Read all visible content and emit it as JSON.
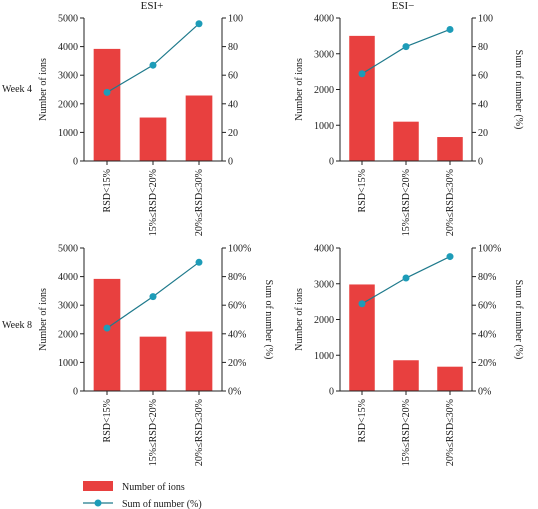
{
  "column_titles": [
    "ESI+",
    "ESI−"
  ],
  "row_labels": [
    "Week 4",
    "Week 8"
  ],
  "legend": {
    "bar_label": "Number of ions",
    "line_label": "Sum of number (%)",
    "bar_color": "#e8403f",
    "line_color": "#1f7a8c",
    "marker_color": "#1d9cb8"
  },
  "chart_data": [
    {
      "type": "bar",
      "panel": "Week 4 / ESI+",
      "categories": [
        "RSD<15%",
        "15%≤RSD<20%",
        "20%≤RSD≤30%"
      ],
      "series": [
        {
          "name": "Number of ions",
          "type": "bar",
          "axis": "left",
          "values": [
            3920,
            1520,
            2290
          ]
        },
        {
          "name": "Sum of number (%)",
          "type": "line",
          "axis": "right",
          "values": [
            48,
            67,
            96
          ]
        }
      ],
      "ylabel": "Number of ions",
      "ylabel_right": "",
      "ylim": [
        0,
        5000
      ],
      "yticks": [
        "0",
        "1000",
        "2000",
        "3000",
        "4000",
        "5000"
      ],
      "ylim_right": [
        0,
        100
      ],
      "yticks_right": [
        "0",
        "20",
        "40",
        "60",
        "80",
        "100"
      ]
    },
    {
      "type": "bar",
      "panel": "Week 4 / ESI−",
      "categories": [
        "RSD<15%",
        "15%≤RSD<20%",
        "20%≤RSD≤30%"
      ],
      "series": [
        {
          "name": "Number of ions",
          "type": "bar",
          "axis": "left",
          "values": [
            3500,
            1100,
            670
          ]
        },
        {
          "name": "Sum of number (%)",
          "type": "line",
          "axis": "right",
          "values": [
            61,
            80,
            92
          ]
        }
      ],
      "ylabel": "Number of ions",
      "ylabel_right": "Sum of number (%)",
      "ylim": [
        0,
        4000
      ],
      "yticks": [
        "0",
        "1000",
        "2000",
        "3000",
        "4000"
      ],
      "ylim_right": [
        0,
        100
      ],
      "yticks_right": [
        "0",
        "20",
        "40",
        "60",
        "80",
        "100"
      ]
    },
    {
      "type": "bar",
      "panel": "Week 8 / ESI+",
      "categories": [
        "RSD<15%",
        "15%≤RSD<20%",
        "20%≤RSD≤30%"
      ],
      "series": [
        {
          "name": "Number of ions",
          "type": "bar",
          "axis": "left",
          "values": [
            3920,
            1900,
            2080
          ]
        },
        {
          "name": "Sum of number (%)",
          "type": "line",
          "axis": "right",
          "values": [
            44,
            66,
            90
          ]
        }
      ],
      "ylabel": "Number of ions",
      "ylabel_right": "Sum of number (%)",
      "ylim": [
        0,
        5000
      ],
      "yticks": [
        "0",
        "1000",
        "2000",
        "3000",
        "4000",
        "5000"
      ],
      "ylim_right": [
        0,
        100
      ],
      "yticks_right": [
        "0%",
        "20%",
        "40%",
        "60%",
        "80%",
        "100%"
      ]
    },
    {
      "type": "bar",
      "panel": "Week 8 / ESI−",
      "categories": [
        "RSD<15%",
        "15%≤RSD<20%",
        "20%≤RSD≤30%"
      ],
      "series": [
        {
          "name": "Number of ions",
          "type": "bar",
          "axis": "left",
          "values": [
            2980,
            860,
            680
          ]
        },
        {
          "name": "Sum of number (%)",
          "type": "line",
          "axis": "right",
          "values": [
            61,
            79,
            94
          ]
        }
      ],
      "ylabel": "Number of ions",
      "ylabel_right": "Sum of number (%)",
      "ylim": [
        0,
        4000
      ],
      "yticks": [
        "0",
        "1000",
        "2000",
        "3000",
        "4000"
      ],
      "ylim_right": [
        0,
        100
      ],
      "yticks_right": [
        "0%",
        "20%",
        "40%",
        "60%",
        "80%",
        "100%"
      ]
    }
  ]
}
